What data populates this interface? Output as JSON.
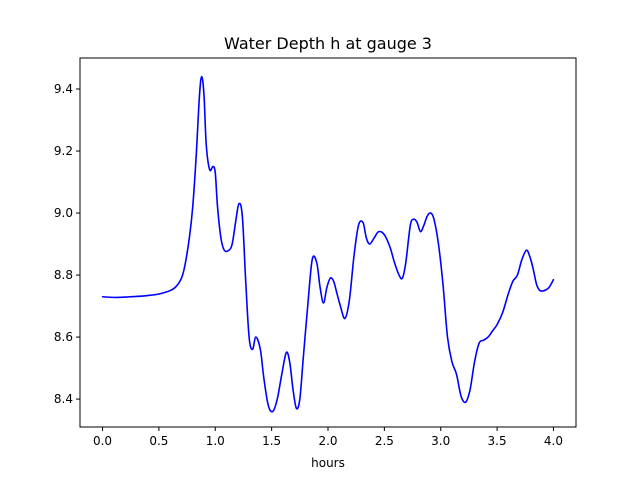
{
  "chart_data": {
    "type": "line",
    "title": "Water Depth h at gauge 3",
    "xlabel": "hours",
    "ylabel": "",
    "xlim": [
      -0.2,
      4.2
    ],
    "ylim": [
      8.31,
      9.5
    ],
    "xticks": [
      0.0,
      0.5,
      1.0,
      1.5,
      2.0,
      2.5,
      3.0,
      3.5,
      4.0
    ],
    "xtick_labels": [
      "0.0",
      "0.5",
      "1.0",
      "1.5",
      "2.0",
      "2.5",
      "3.0",
      "3.5",
      "4.0"
    ],
    "yticks": [
      8.4,
      8.6,
      8.8,
      9.0,
      9.2,
      9.4
    ],
    "ytick_labels": [
      "8.4",
      "8.6",
      "8.8",
      "9.0",
      "9.2",
      "9.4"
    ],
    "grid": false,
    "series": [
      {
        "color": "#0000ff",
        "x": [
          0.0,
          0.1,
          0.2,
          0.3,
          0.4,
          0.5,
          0.6,
          0.65,
          0.7,
          0.73,
          0.77,
          0.8,
          0.83,
          0.86,
          0.88,
          0.9,
          0.92,
          0.95,
          0.98,
          1.0,
          1.02,
          1.05,
          1.08,
          1.12,
          1.15,
          1.18,
          1.21,
          1.24,
          1.27,
          1.3,
          1.33,
          1.36,
          1.4,
          1.43,
          1.47,
          1.51,
          1.55,
          1.59,
          1.63,
          1.66,
          1.69,
          1.72,
          1.75,
          1.78,
          1.82,
          1.86,
          1.9,
          1.93,
          1.96,
          1.99,
          2.02,
          2.05,
          2.08,
          2.11,
          2.15,
          2.19,
          2.23,
          2.27,
          2.31,
          2.34,
          2.37,
          2.41,
          2.45,
          2.5,
          2.55,
          2.59,
          2.63,
          2.66,
          2.69,
          2.73,
          2.76,
          2.79,
          2.82,
          2.85,
          2.88,
          2.91,
          2.94,
          2.98,
          3.02,
          3.06,
          3.1,
          3.14,
          3.18,
          3.22,
          3.26,
          3.3,
          3.34,
          3.38,
          3.42,
          3.46,
          3.5,
          3.55,
          3.6,
          3.64,
          3.68,
          3.72,
          3.76,
          3.79,
          3.82,
          3.85,
          3.88,
          3.92,
          3.96,
          4.0
        ],
        "y": [
          8.73,
          8.728,
          8.729,
          8.731,
          8.734,
          8.739,
          8.75,
          8.762,
          8.79,
          8.83,
          8.92,
          9.02,
          9.18,
          9.38,
          9.44,
          9.38,
          9.22,
          9.14,
          9.15,
          9.13,
          9.02,
          8.92,
          8.88,
          8.88,
          8.9,
          8.97,
          9.03,
          8.99,
          8.78,
          8.6,
          8.56,
          8.6,
          8.56,
          8.47,
          8.38,
          8.36,
          8.4,
          8.48,
          8.55,
          8.52,
          8.43,
          8.37,
          8.4,
          8.53,
          8.7,
          8.85,
          8.84,
          8.76,
          8.71,
          8.76,
          8.79,
          8.78,
          8.74,
          8.7,
          8.66,
          8.72,
          8.86,
          8.96,
          8.97,
          8.92,
          8.9,
          8.92,
          8.94,
          8.93,
          8.89,
          8.84,
          8.8,
          8.79,
          8.84,
          8.96,
          8.98,
          8.97,
          8.94,
          8.96,
          8.99,
          9.0,
          8.98,
          8.9,
          8.77,
          8.6,
          8.52,
          8.48,
          8.41,
          8.39,
          8.43,
          8.52,
          8.58,
          8.59,
          8.6,
          8.62,
          8.64,
          8.68,
          8.74,
          8.78,
          8.8,
          8.85,
          8.88,
          8.86,
          8.82,
          8.77,
          8.75,
          8.75,
          8.76,
          8.785
        ]
      }
    ]
  }
}
